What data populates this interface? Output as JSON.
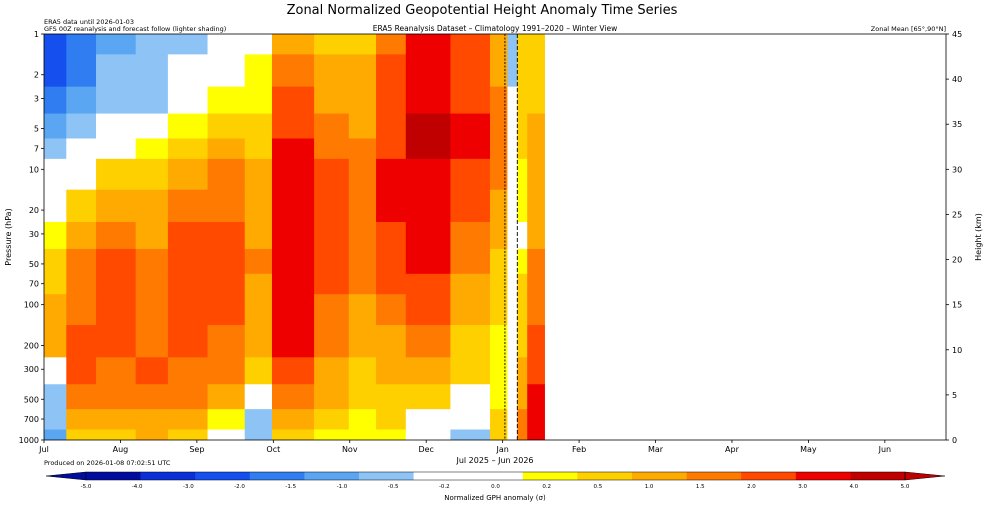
{
  "chart_data": {
    "type": "heatmap",
    "title": "Zonal Normalized Geopotential Height Anomaly Time Series",
    "subtitle": "ERA5 Reanalysis Dataset – Climatology 1991–2020 – Winter View",
    "note_left_1": "ERA5 data until 2026-01-03",
    "note_left_2": "GFS 00Z reanalysis and forecast follow (lighter shading)",
    "note_right": "Zonal Mean [65°,90°N]",
    "produced": "Produced on 2026-01-08 07:02:51 UTC",
    "xlabel": "Jul 2025 – Jun 2026",
    "ylabel_left": "Pressure (hPa)",
    "ylabel_right": "Height (km)",
    "x_ticks": [
      "Jul",
      "Aug",
      "Sep",
      "Oct",
      "Nov",
      "Dec",
      "Jan",
      "Feb",
      "Mar",
      "Apr",
      "May",
      "Jun"
    ],
    "x_range": [
      "2025-07-01",
      "2026-06-30"
    ],
    "data_end": "2026-01-19",
    "era5_end": "2026-01-03",
    "forecast_marker": "2026-01-08",
    "y_ticks": [
      "1",
      "2",
      "3",
      "5",
      "7",
      "10",
      "20",
      "30",
      "50",
      "70",
      "100",
      "200",
      "300",
      "500",
      "700",
      "1000"
    ],
    "y_range_hPa": [
      1000,
      1
    ],
    "y_scale": "log",
    "y2_ticks": [
      "0",
      "5",
      "10",
      "15",
      "20",
      "25",
      "30",
      "35",
      "40",
      "45"
    ],
    "y2_range_km": [
      0,
      45
    ],
    "colorbar_label": "Normalized GPH anomaly (σ)",
    "colorbar_ticks": [
      "-5.0",
      "-4.0",
      "-3.0",
      "-2.0",
      "-1.5",
      "-1.0",
      "-0.5",
      "-0.2",
      "0.0",
      "0.2",
      "0.5",
      "1.0",
      "1.5",
      "2.0",
      "3.0",
      "4.0",
      "5.0"
    ],
    "colorbar_colors": [
      "#000c9e",
      "#0a2fd6",
      "#1550ee",
      "#2f7df0",
      "#5aa6f2",
      "#8ec4f5",
      "#ffffff",
      "#ffffff",
      "#ffff00",
      "#ffd000",
      "#ffaa00",
      "#ff7a00",
      "#ff4a00",
      "#ee0000",
      "#c00000"
    ],
    "anomaly_bands": [
      {
        "from": "2025-07-01",
        "to": "2025-07-10",
        "values": [
          -2.3,
          -2.1,
          -1.8,
          -1.4,
          -1.0,
          -0.4,
          -0.1,
          0.1,
          0.3,
          0.4,
          0.5,
          0.5,
          -0.2,
          -0.6,
          -0.9,
          -1.2
        ]
      },
      {
        "from": "2025-07-10",
        "to": "2025-07-22",
        "values": [
          -1.8,
          -1.6,
          -1.3,
          -0.9,
          -0.5,
          -0.2,
          0.3,
          0.8,
          1.0,
          1.1,
          1.3,
          1.6,
          1.8,
          1.3,
          0.8,
          0.2
        ]
      },
      {
        "from": "2025-07-22",
        "to": "2025-08-07",
        "values": [
          -1.2,
          -1.0,
          -0.7,
          -0.4,
          -0.1,
          0.4,
          0.9,
          1.2,
          1.5,
          1.6,
          1.6,
          1.5,
          1.3,
          1.0,
          0.7,
          0.4
        ]
      },
      {
        "from": "2025-08-07",
        "to": "2025-08-20",
        "values": [
          -1.0,
          -0.9,
          -0.6,
          -0.3,
          0.1,
          0.4,
          0.7,
          0.9,
          1.0,
          1.1,
          1.2,
          1.3,
          1.5,
          1.2,
          0.9,
          0.5
        ]
      },
      {
        "from": "2025-08-20",
        "to": "2025-09-05",
        "values": [
          -0.6,
          -0.4,
          -0.2,
          0.1,
          0.4,
          0.8,
          1.2,
          1.5,
          1.6,
          1.7,
          1.7,
          1.6,
          1.4,
          1.0,
          0.6,
          0.2
        ]
      },
      {
        "from": "2025-09-05",
        "to": "2025-09-20",
        "values": [
          -0.3,
          -0.2,
          0.0,
          0.3,
          0.6,
          1.0,
          1.4,
          1.6,
          1.7,
          1.6,
          1.5,
          1.3,
          1.0,
          0.5,
          0.0,
          -0.5
        ]
      },
      {
        "from": "2025-09-20",
        "to": "2025-10-01",
        "values": [
          -0.2,
          0.0,
          0.1,
          0.2,
          0.4,
          0.6,
          0.8,
          0.9,
          1.0,
          0.9,
          0.7,
          0.5,
          0.2,
          -0.2,
          -0.7,
          -1.0
        ]
      },
      {
        "from": "2025-10-01",
        "to": "2025-10-18",
        "values": [
          0.7,
          1.2,
          1.6,
          1.8,
          2.0,
          2.3,
          2.5,
          2.6,
          2.6,
          2.5,
          2.4,
          2.1,
          1.7,
          1.2,
          0.6,
          0.3
        ]
      },
      {
        "from": "2025-10-18",
        "to": "2025-11-01",
        "values": [
          0.4,
          0.6,
          0.9,
          1.2,
          1.4,
          1.6,
          1.8,
          1.8,
          1.7,
          1.6,
          1.4,
          1.2,
          0.9,
          0.5,
          0.3,
          0.1
        ]
      },
      {
        "from": "2025-11-01",
        "to": "2025-11-12",
        "values": [
          0.3,
          0.5,
          0.7,
          0.9,
          1.1,
          1.2,
          1.3,
          1.3,
          1.2,
          1.0,
          0.8,
          0.6,
          0.4,
          0.2,
          0.1,
          0.0
        ]
      },
      {
        "from": "2025-11-12",
        "to": "2025-11-24",
        "values": [
          1.3,
          1.5,
          1.7,
          1.8,
          1.9,
          2.0,
          2.0,
          1.9,
          1.8,
          1.6,
          1.3,
          0.9,
          0.6,
          0.3,
          0.2,
          0.0
        ]
      },
      {
        "from": "2025-11-24",
        "to": "2025-12-12",
        "values": [
          2.6,
          2.8,
          2.9,
          3.0,
          3.0,
          2.9,
          2.6,
          2.3,
          2.0,
          1.8,
          1.5,
          1.1,
          0.7,
          0.3,
          -0.1,
          -0.3
        ]
      },
      {
        "from": "2025-12-12",
        "to": "2025-12-28",
        "values": [
          1.6,
          1.8,
          1.9,
          2.0,
          2.0,
          1.9,
          1.7,
          1.4,
          1.1,
          0.9,
          0.6,
          0.4,
          0.2,
          -0.2,
          -0.5,
          -0.6
        ]
      },
      {
        "from": "2025-12-28",
        "to": "2026-01-04",
        "values": [
          0.8,
          0.9,
          1.0,
          1.1,
          1.1,
          1.0,
          0.9,
          0.6,
          0.4,
          0.3,
          0.2,
          0.1,
          0.0,
          0.1,
          0.2,
          0.3
        ]
      },
      {
        "from": "2026-01-04",
        "to": "2026-01-08",
        "values": [
          -0.6,
          -0.6,
          -0.5,
          -0.5,
          -0.4,
          -0.3,
          -0.3,
          -0.2,
          -0.2,
          -0.2,
          -0.1,
          -0.1,
          -0.1,
          -0.1,
          -0.1,
          -0.1
        ]
      },
      {
        "from": "2026-01-08",
        "to": "2026-01-12",
        "values": [
          0.3,
          0.3,
          0.2,
          0.2,
          0.2,
          0.1,
          0.0,
          -0.1,
          0.1,
          0.2,
          0.3,
          0.4,
          0.6,
          0.9,
          1.1,
          1.2
        ]
      },
      {
        "from": "2026-01-12",
        "to": "2026-01-19",
        "values": [
          0.2,
          0.4,
          0.4,
          0.5,
          0.6,
          0.6,
          0.7,
          0.8,
          1.0,
          1.2,
          1.4,
          1.6,
          1.8,
          2.0,
          2.2,
          2.3
        ]
      }
    ]
  }
}
